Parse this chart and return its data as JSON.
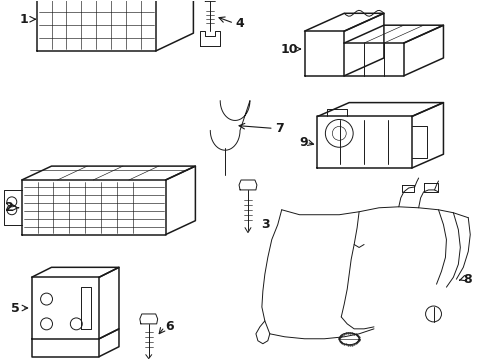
{
  "background_color": "#ffffff",
  "line_color": "#1a1a1a",
  "lw_thick": 1.1,
  "lw_thin": 0.7,
  "lw_hair": 0.45,
  "label_fontsize": 9
}
